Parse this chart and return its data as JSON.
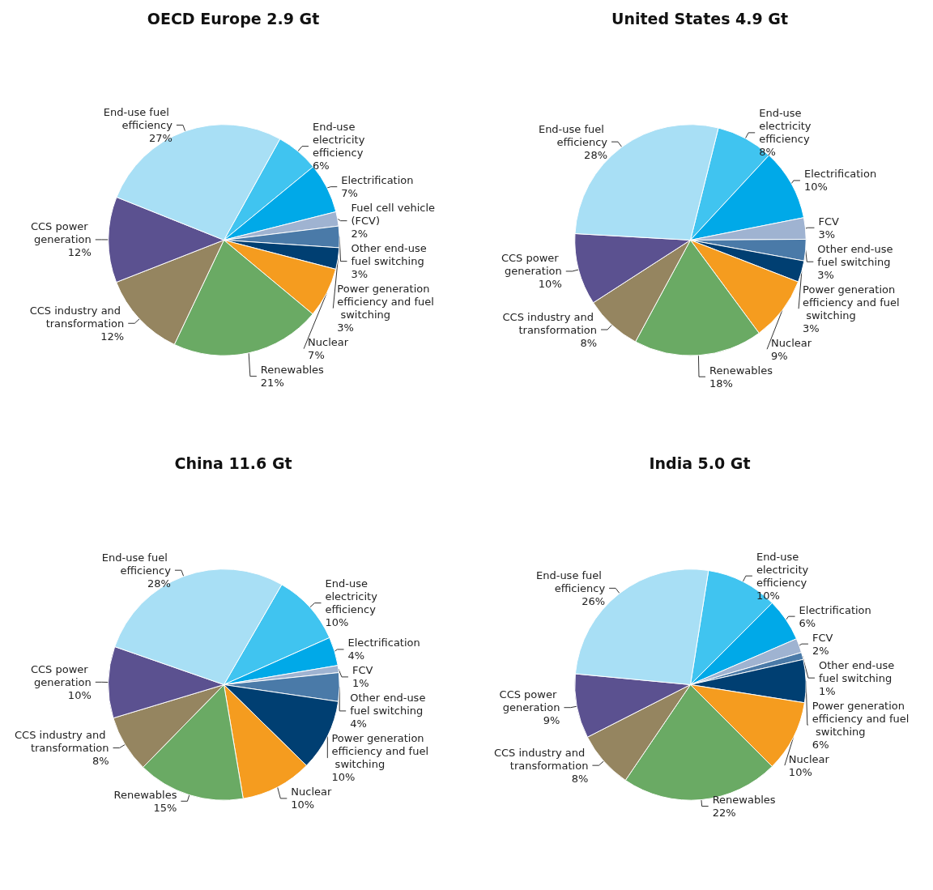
{
  "chart_data": [
    {
      "type": "pie",
      "title": "OECD Europe 2.9 Gt",
      "categories": [
        "End-use electricity efficiency",
        "Electrification",
        "Fuel cell vehicle (FCV)",
        "Other end-use fuel switching",
        "Power generation efficiency and fuel switching",
        "Nuclear",
        "Renewables",
        "CCS industry and transformation",
        "CCS power generation",
        "End-use fuel efficiency"
      ],
      "values": [
        6,
        7,
        2,
        3,
        3,
        7,
        21,
        12,
        12,
        27
      ],
      "value_labels": [
        "6%",
        "7%",
        "2%",
        "3%",
        "3%",
        "7%",
        "21%",
        "12%",
        "12%",
        "27%"
      ],
      "colors": [
        "#40c4f0",
        "#00a9e8",
        "#9fb3d1",
        "#4a7aa8",
        "#003f72",
        "#f59c1f",
        "#6aaa64",
        "#958560",
        "#5b5190",
        "#a8dff5"
      ],
      "legend": false
    },
    {
      "type": "pie",
      "title": "United States 4.9 Gt",
      "categories": [
        "End-use electricity efficiency",
        "Electrification",
        "FCV",
        "Other end-use fuel switching",
        "Power generation efficiency and fuel switching",
        "Nuclear",
        "Renewables",
        "CCS industry and transformation",
        "CCS power generation",
        "End-use fuel efficiency"
      ],
      "values": [
        8,
        10,
        3,
        3,
        3,
        9,
        18,
        8,
        10,
        28
      ],
      "value_labels": [
        "8%",
        "10%",
        "3%",
        "3%",
        "3%",
        "9%",
        "18%",
        "8%",
        "10%",
        "28%"
      ],
      "colors": [
        "#40c4f0",
        "#00a9e8",
        "#9fb3d1",
        "#4a7aa8",
        "#003f72",
        "#f59c1f",
        "#6aaa64",
        "#958560",
        "#5b5190",
        "#a8dff5"
      ],
      "legend": false
    },
    {
      "type": "pie",
      "title": "China 11.6 Gt",
      "categories": [
        "End-use electricity efficiency",
        "Electrification",
        "FCV",
        "Other end-use fuel switching",
        "Power generation efficiency and fuel switching",
        "Nuclear",
        "Renewables",
        "CCS industry and transformation",
        "CCS power generation",
        "End-use fuel efficiency"
      ],
      "values": [
        10,
        4,
        1,
        4,
        10,
        10,
        15,
        8,
        10,
        28
      ],
      "value_labels": [
        "10%",
        "4%",
        "1%",
        "4%",
        "10%",
        "10%",
        "15%",
        "8%",
        "10%",
        "28%"
      ],
      "colors": [
        "#40c4f0",
        "#00a9e8",
        "#9fb3d1",
        "#4a7aa8",
        "#003f72",
        "#f59c1f",
        "#6aaa64",
        "#958560",
        "#5b5190",
        "#a8dff5"
      ],
      "legend": false
    },
    {
      "type": "pie",
      "title": "India 5.0 Gt",
      "categories": [
        "End-use electricity efficiency",
        "Electrification",
        "FCV",
        "Other end-use fuel switching",
        "Power generation efficiency and fuel switching",
        "Nuclear",
        "Renewables",
        "CCS industry and transformation",
        "CCS power generation",
        "End-use fuel efficiency"
      ],
      "values": [
        10,
        6,
        2,
        1,
        6,
        10,
        22,
        8,
        9,
        26
      ],
      "value_labels": [
        "10%",
        "6%",
        "2%",
        "1%",
        "6%",
        "10%",
        "22%",
        "8%",
        "9%",
        "26%"
      ],
      "colors": [
        "#40c4f0",
        "#00a9e8",
        "#9fb3d1",
        "#4a7aa8",
        "#003f72",
        "#f59c1f",
        "#6aaa64",
        "#958560",
        "#5b5190",
        "#a8dff5"
      ],
      "legend": false
    }
  ]
}
